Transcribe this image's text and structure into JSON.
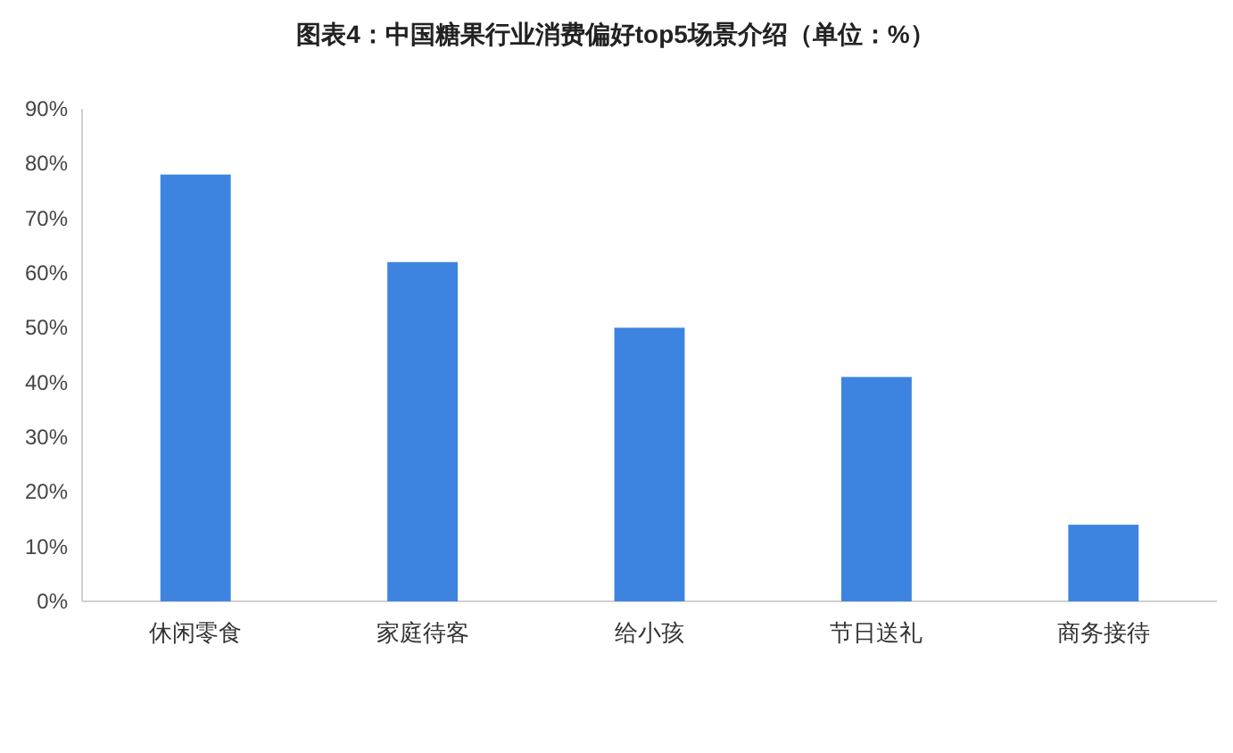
{
  "chart_data": {
    "type": "bar",
    "title": "图表4：中国糖果行业消费偏好top5场景介绍（单位：%）",
    "categories": [
      "休闲零食",
      "家庭待客",
      "给小孩",
      "节日送礼",
      "商务接待"
    ],
    "values": [
      78,
      62,
      50,
      41,
      14
    ],
    "color": "#3d84e0",
    "ylim": [
      0,
      90
    ],
    "yticks": [
      {
        "value": 0,
        "label": "0%"
      },
      {
        "value": 10,
        "label": "10%"
      },
      {
        "value": 20,
        "label": "20%"
      },
      {
        "value": 30,
        "label": "30%"
      },
      {
        "value": 40,
        "label": "40%"
      },
      {
        "value": 50,
        "label": "50%"
      },
      {
        "value": 60,
        "label": "60%"
      },
      {
        "value": 70,
        "label": "70%"
      },
      {
        "value": 80,
        "label": "80%"
      },
      {
        "value": 90,
        "label": "90%"
      }
    ],
    "grid": false
  }
}
